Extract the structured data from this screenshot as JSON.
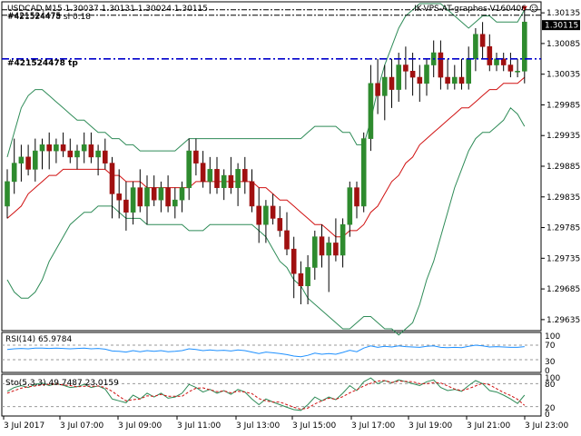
{
  "header": {
    "symbol_info": "USDCAD,M15  1.30037 1.30131 1.30024 1.30115",
    "expert_name": "IK-VPS-AT-graphes-V160406",
    "expert_icon": "smiley-icon"
  },
  "order_lines": {
    "sl_label": "#421524478 sl 0.18",
    "sl_label_overlap": "#421524475",
    "tp_label": "#421524478 tp"
  },
  "price_axis": {
    "current_price": "1.30115",
    "ticks": [
      "1.30135",
      "1.30085",
      "1.30035",
      "1.29985",
      "1.29935",
      "1.29885",
      "1.29835",
      "1.29785",
      "1.29735",
      "1.29685",
      "1.29635"
    ]
  },
  "time_axis": {
    "ticks": [
      "3 Jul 2017",
      "3 Jul 07:00",
      "3 Jul 09:00",
      "3 Jul 11:00",
      "3 Jul 13:00",
      "3 Jul 15:00",
      "3 Jul 17:00",
      "3 Jul 19:00",
      "3 Jul 21:00",
      "3 Jul 23:00"
    ]
  },
  "rsi_panel": {
    "label": "RSI(14) 65.9784",
    "levels": [
      "100",
      "70",
      "30",
      "0"
    ]
  },
  "sto_panel": {
    "label": "Sto(5,3,3) 49.7487 23.0159",
    "levels": [
      "100",
      "80",
      "20",
      "0"
    ]
  },
  "colors": {
    "bull": "#2e8b2e",
    "bear": "#a01010",
    "ma": "#d01010",
    "bands": "#2e8b57",
    "rsi": "#1e90ff",
    "tp_line": "#0000cc",
    "grid": "#c0c0c0"
  },
  "chart_data": {
    "type": "candlestick",
    "symbol": "USDCAD",
    "timeframe": "M15",
    "ylim": [
      1.2962,
      1.3015
    ],
    "sl_price": 1.3014,
    "tp_price": 1.3006,
    "candles": [
      {
        "o": 1.2982,
        "h": 1.2988,
        "l": 1.298,
        "c": 1.2986
      },
      {
        "o": 1.2986,
        "h": 1.2993,
        "l": 1.2984,
        "c": 1.2989
      },
      {
        "o": 1.2989,
        "h": 1.2992,
        "l": 1.2986,
        "c": 1.299
      },
      {
        "o": 1.299,
        "h": 1.2992,
        "l": 1.2987,
        "c": 1.2988
      },
      {
        "o": 1.2988,
        "h": 1.2993,
        "l": 1.2986,
        "c": 1.2991
      },
      {
        "o": 1.2991,
        "h": 1.2993,
        "l": 1.2988,
        "c": 1.2992
      },
      {
        "o": 1.2992,
        "h": 1.2994,
        "l": 1.2988,
        "c": 1.2991
      },
      {
        "o": 1.2991,
        "h": 1.2993,
        "l": 1.2989,
        "c": 1.2992
      },
      {
        "o": 1.2992,
        "h": 1.2994,
        "l": 1.299,
        "c": 1.2991
      },
      {
        "o": 1.2991,
        "h": 1.2993,
        "l": 1.2989,
        "c": 1.299
      },
      {
        "o": 1.299,
        "h": 1.2992,
        "l": 1.2988,
        "c": 1.2991
      },
      {
        "o": 1.2991,
        "h": 1.2994,
        "l": 1.2989,
        "c": 1.2992
      },
      {
        "o": 1.2992,
        "h": 1.2994,
        "l": 1.2989,
        "c": 1.299
      },
      {
        "o": 1.299,
        "h": 1.2992,
        "l": 1.2987,
        "c": 1.2991
      },
      {
        "o": 1.2991,
        "h": 1.2993,
        "l": 1.2988,
        "c": 1.2989
      },
      {
        "o": 1.2989,
        "h": 1.299,
        "l": 1.298,
        "c": 1.2984
      },
      {
        "o": 1.2984,
        "h": 1.2988,
        "l": 1.298,
        "c": 1.2983
      },
      {
        "o": 1.2983,
        "h": 1.2986,
        "l": 1.2978,
        "c": 1.2981
      },
      {
        "o": 1.2981,
        "h": 1.2986,
        "l": 1.2979,
        "c": 1.2985
      },
      {
        "o": 1.2985,
        "h": 1.2988,
        "l": 1.2981,
        "c": 1.2982
      },
      {
        "o": 1.2982,
        "h": 1.2987,
        "l": 1.2979,
        "c": 1.2985
      },
      {
        "o": 1.2985,
        "h": 1.2987,
        "l": 1.2982,
        "c": 1.2983
      },
      {
        "o": 1.2983,
        "h": 1.2986,
        "l": 1.2981,
        "c": 1.2985
      },
      {
        "o": 1.2985,
        "h": 1.2987,
        "l": 1.2981,
        "c": 1.2982
      },
      {
        "o": 1.2982,
        "h": 1.2985,
        "l": 1.298,
        "c": 1.2983
      },
      {
        "o": 1.2983,
        "h": 1.2986,
        "l": 1.2981,
        "c": 1.2985
      },
      {
        "o": 1.2985,
        "h": 1.2993,
        "l": 1.2983,
        "c": 1.2991
      },
      {
        "o": 1.2991,
        "h": 1.2993,
        "l": 1.2987,
        "c": 1.2989
      },
      {
        "o": 1.2989,
        "h": 1.2991,
        "l": 1.2985,
        "c": 1.2986
      },
      {
        "o": 1.2986,
        "h": 1.299,
        "l": 1.2984,
        "c": 1.2988
      },
      {
        "o": 1.2988,
        "h": 1.299,
        "l": 1.2984,
        "c": 1.2985
      },
      {
        "o": 1.2985,
        "h": 1.2988,
        "l": 1.2983,
        "c": 1.2987
      },
      {
        "o": 1.2987,
        "h": 1.299,
        "l": 1.2984,
        "c": 1.2985
      },
      {
        "o": 1.2985,
        "h": 1.2989,
        "l": 1.2982,
        "c": 1.2988
      },
      {
        "o": 1.2988,
        "h": 1.299,
        "l": 1.2984,
        "c": 1.2986
      },
      {
        "o": 1.2986,
        "h": 1.2988,
        "l": 1.2981,
        "c": 1.2982
      },
      {
        "o": 1.2982,
        "h": 1.2985,
        "l": 1.2976,
        "c": 1.2979
      },
      {
        "o": 1.2979,
        "h": 1.2983,
        "l": 1.2976,
        "c": 1.2982
      },
      {
        "o": 1.2982,
        "h": 1.2984,
        "l": 1.2979,
        "c": 1.298
      },
      {
        "o": 1.298,
        "h": 1.2982,
        "l": 1.2977,
        "c": 1.2978
      },
      {
        "o": 1.2978,
        "h": 1.2981,
        "l": 1.2974,
        "c": 1.2975
      },
      {
        "o": 1.2975,
        "h": 1.2977,
        "l": 1.2967,
        "c": 1.2971
      },
      {
        "o": 1.2971,
        "h": 1.2973,
        "l": 1.2966,
        "c": 1.2969
      },
      {
        "o": 1.2969,
        "h": 1.2974,
        "l": 1.2966,
        "c": 1.2972
      },
      {
        "o": 1.2972,
        "h": 1.2978,
        "l": 1.297,
        "c": 1.2977
      },
      {
        "o": 1.2977,
        "h": 1.2979,
        "l": 1.2972,
        "c": 1.2974
      },
      {
        "o": 1.2974,
        "h": 1.2977,
        "l": 1.2968,
        "c": 1.2976
      },
      {
        "o": 1.2976,
        "h": 1.298,
        "l": 1.2973,
        "c": 1.2974
      },
      {
        "o": 1.2974,
        "h": 1.298,
        "l": 1.2972,
        "c": 1.2979
      },
      {
        "o": 1.2979,
        "h": 1.2986,
        "l": 1.2977,
        "c": 1.2985
      },
      {
        "o": 1.2985,
        "h": 1.2986,
        "l": 1.298,
        "c": 1.2982
      },
      {
        "o": 1.2982,
        "h": 1.2994,
        "l": 1.2981,
        "c": 1.2993
      },
      {
        "o": 1.2993,
        "h": 1.3005,
        "l": 1.2991,
        "c": 1.3002
      },
      {
        "o": 1.3002,
        "h": 1.3006,
        "l": 1.2997,
        "c": 1.3
      },
      {
        "o": 1.3,
        "h": 1.3005,
        "l": 1.2996,
        "c": 1.3003
      },
      {
        "o": 1.3003,
        "h": 1.3006,
        "l": 1.2998,
        "c": 1.3001
      },
      {
        "o": 1.3001,
        "h": 1.3007,
        "l": 1.2999,
        "c": 1.3005
      },
      {
        "o": 1.3005,
        "h": 1.3008,
        "l": 1.3001,
        "c": 1.3004
      },
      {
        "o": 1.3004,
        "h": 1.3007,
        "l": 1.3,
        "c": 1.3003
      },
      {
        "o": 1.3003,
        "h": 1.3005,
        "l": 1.2999,
        "c": 1.3002
      },
      {
        "o": 1.3002,
        "h": 1.3006,
        "l": 1.3,
        "c": 1.3005
      },
      {
        "o": 1.3005,
        "h": 1.3009,
        "l": 1.3003,
        "c": 1.3007
      },
      {
        "o": 1.3007,
        "h": 1.3009,
        "l": 1.3001,
        "c": 1.3003
      },
      {
        "o": 1.3003,
        "h": 1.3006,
        "l": 1.3001,
        "c": 1.3002
      },
      {
        "o": 1.3002,
        "h": 1.3005,
        "l": 1.3001,
        "c": 1.3003
      },
      {
        "o": 1.3003,
        "h": 1.3006,
        "l": 1.3001,
        "c": 1.3002
      },
      {
        "o": 1.3002,
        "h": 1.3008,
        "l": 1.3001,
        "c": 1.3006
      },
      {
        "o": 1.3006,
        "h": 1.3011,
        "l": 1.3004,
        "c": 1.301
      },
      {
        "o": 1.301,
        "h": 1.3012,
        "l": 1.3006,
        "c": 1.3008
      },
      {
        "o": 1.3008,
        "h": 1.301,
        "l": 1.3004,
        "c": 1.3005
      },
      {
        "o": 1.3005,
        "h": 1.3007,
        "l": 1.3004,
        "c": 1.3006
      },
      {
        "o": 1.3006,
        "h": 1.3007,
        "l": 1.3004,
        "c": 1.3005
      },
      {
        "o": 1.3005,
        "h": 1.3007,
        "l": 1.3003,
        "c": 1.3004
      },
      {
        "o": 1.3004,
        "h": 1.3006,
        "l": 1.3003,
        "c": 1.3004
      },
      {
        "o": 1.3004,
        "h": 1.3014,
        "l": 1.3002,
        "c": 1.3012
      }
    ],
    "ma": [
      1.298,
      1.2981,
      1.2982,
      1.2984,
      1.2985,
      1.2986,
      1.2987,
      1.2987,
      1.2988,
      1.2988,
      1.2988,
      1.2988,
      1.2988,
      1.2988,
      1.2988,
      1.2987,
      1.2987,
      1.2986,
      1.2986,
      1.2986,
      1.2985,
      1.2985,
      1.2985,
      1.2985,
      1.2985,
      1.2985,
      1.2985,
      1.2986,
      1.2986,
      1.2986,
      1.2986,
      1.2986,
      1.2986,
      1.2986,
      1.2986,
      1.2986,
      1.2985,
      1.2985,
      1.2984,
      1.2983,
      1.2983,
      1.2982,
      1.2981,
      1.298,
      1.2979,
      1.2979,
      1.2978,
      1.2977,
      1.2977,
      1.2978,
      1.2978,
      1.2979,
      1.2981,
      1.2982,
      1.2984,
      1.2986,
      1.2987,
      1.2989,
      1.299,
      1.2992,
      1.2993,
      1.2994,
      1.2995,
      1.2996,
      1.2997,
      1.2998,
      1.2998,
      1.2999,
      1.3,
      1.3001,
      1.3001,
      1.3002,
      1.3002,
      1.3002,
      1.3003
    ],
    "bb_upper": [
      1.299,
      1.2994,
      1.2998,
      1.3,
      1.3001,
      1.3001,
      1.3,
      1.2999,
      1.2998,
      1.2997,
      1.2996,
      1.2996,
      1.2995,
      1.2994,
      1.2994,
      1.2993,
      1.2993,
      1.2992,
      1.2992,
      1.2991,
      1.2991,
      1.2991,
      1.2991,
      1.2991,
      1.2991,
      1.2992,
      1.2993,
      1.2993,
      1.2993,
      1.2993,
      1.2993,
      1.2993,
      1.2993,
      1.2993,
      1.2993,
      1.2993,
      1.2993,
      1.2993,
      1.2993,
      1.2993,
      1.2993,
      1.2993,
      1.2993,
      1.2994,
      1.2995,
      1.2995,
      1.2995,
      1.2995,
      1.2994,
      1.2994,
      1.2992,
      1.2992,
      1.2996,
      1.3001,
      1.3005,
      1.3008,
      1.3011,
      1.3013,
      1.3014,
      1.3015,
      1.3015,
      1.3015,
      1.3015,
      1.3014,
      1.3013,
      1.3012,
      1.3011,
      1.3012,
      1.3013,
      1.3013,
      1.3012,
      1.3012,
      1.3012,
      1.3012,
      1.3014
    ],
    "bb_lower": [
      1.297,
      1.2968,
      1.2967,
      1.2967,
      1.2968,
      1.297,
      1.2973,
      1.2975,
      1.2977,
      1.2979,
      1.298,
      1.2981,
      1.2981,
      1.2982,
      1.2982,
      1.2982,
      1.2981,
      1.298,
      1.298,
      1.298,
      1.2979,
      1.2979,
      1.2979,
      1.2979,
      1.2979,
      1.2979,
      1.2978,
      1.2978,
      1.2978,
      1.2979,
      1.2979,
      1.2979,
      1.2979,
      1.2979,
      1.2979,
      1.2979,
      1.2978,
      1.2977,
      1.2975,
      1.2973,
      1.2972,
      1.297,
      1.2969,
      1.2967,
      1.2966,
      1.2965,
      1.2964,
      1.2963,
      1.2962,
      1.2962,
      1.2963,
      1.2964,
      1.2964,
      1.2963,
      1.2962,
      1.2962,
      1.2961,
      1.2962,
      1.2963,
      1.2966,
      1.297,
      1.2973,
      1.2977,
      1.2981,
      1.2985,
      1.2988,
      1.2991,
      1.2993,
      1.2994,
      1.2994,
      1.2995,
      1.2996,
      1.2998,
      1.2997,
      1.2995
    ],
    "rsi": [
      58,
      60,
      61,
      60,
      62,
      62,
      61,
      62,
      61,
      60,
      61,
      62,
      60,
      61,
      59,
      54,
      53,
      51,
      55,
      52,
      55,
      53,
      55,
      52,
      53,
      55,
      60,
      58,
      55,
      57,
      55,
      56,
      54,
      57,
      55,
      51,
      47,
      51,
      49,
      47,
      44,
      40,
      38,
      42,
      48,
      45,
      47,
      45,
      50,
      56,
      52,
      62,
      68,
      64,
      67,
      65,
      68,
      66,
      65,
      64,
      67,
      68,
      64,
      63,
      64,
      63,
      67,
      70,
      68,
      65,
      66,
      65,
      64,
      64,
      66
    ],
    "sto_k": [
      60,
      70,
      75,
      70,
      78,
      82,
      75,
      80,
      76,
      70,
      72,
      78,
      70,
      74,
      66,
      40,
      35,
      30,
      50,
      40,
      55,
      45,
      55,
      42,
      45,
      55,
      78,
      70,
      58,
      65,
      55,
      62,
      52,
      65,
      58,
      40,
      25,
      40,
      32,
      25,
      18,
      12,
      10,
      25,
      45,
      35,
      45,
      38,
      55,
      75,
      62,
      85,
      95,
      80,
      88,
      82,
      90,
      85,
      80,
      75,
      85,
      90,
      70,
      62,
      65,
      60,
      75,
      88,
      80,
      62,
      58,
      50,
      40,
      28,
      50
    ],
    "sto_d": [
      55,
      62,
      68,
      72,
      74,
      77,
      78,
      79,
      77,
      75,
      72,
      73,
      73,
      74,
      70,
      60,
      47,
      35,
      38,
      40,
      48,
      47,
      52,
      47,
      47,
      47,
      59,
      68,
      69,
      64,
      59,
      61,
      56,
      60,
      58,
      54,
      41,
      35,
      32,
      32,
      25,
      18,
      13,
      16,
      27,
      35,
      42,
      39,
      46,
      56,
      64,
      74,
      81,
      87,
      88,
      83,
      87,
      86,
      85,
      80,
      80,
      83,
      82,
      74,
      66,
      62,
      67,
      74,
      81,
      77,
      67,
      57,
      49,
      39,
      23
    ]
  }
}
